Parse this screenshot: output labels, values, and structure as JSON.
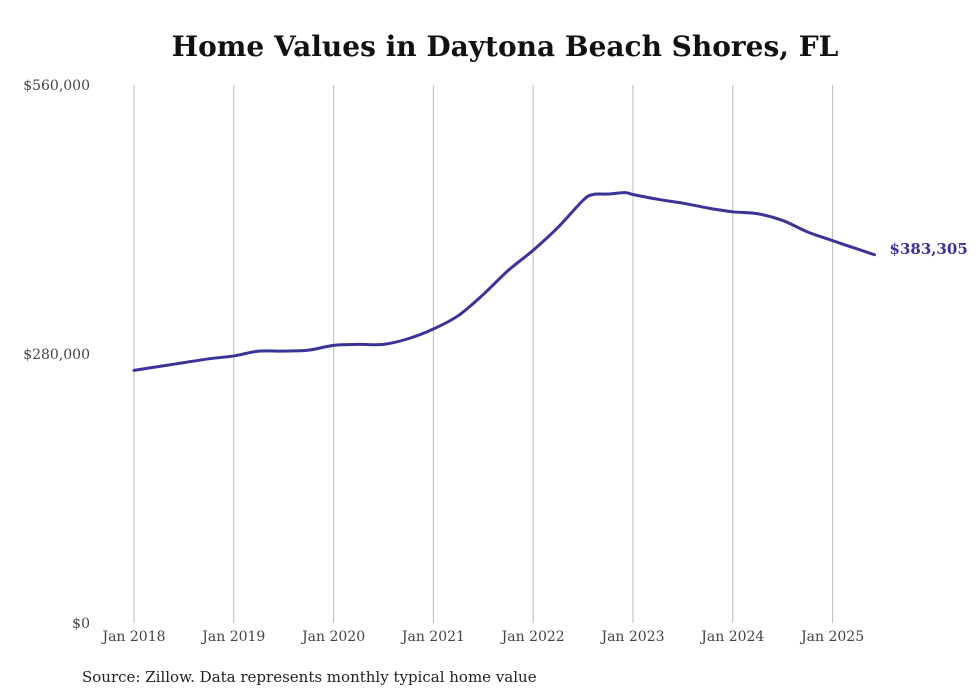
{
  "chart_data": {
    "type": "line",
    "title": "Home Values in Daytona Beach Shores, FL",
    "xlabel": "",
    "ylabel": "",
    "ylim": [
      0,
      560000
    ],
    "y_ticks": [
      0,
      280000,
      560000
    ],
    "y_tick_labels": [
      "$0",
      "$280,000",
      "$560,000"
    ],
    "x_ticks": [
      2018,
      2019,
      2020,
      2021,
      2022,
      2023,
      2024,
      2025
    ],
    "x_tick_labels": [
      "Jan 2018",
      "Jan 2019",
      "Jan 2020",
      "Jan 2021",
      "Jan 2022",
      "Jan 2023",
      "Jan 2024",
      "Jan 2025"
    ],
    "grid": "vertical",
    "series": [
      {
        "name": "Typical home value",
        "color": "#3b3398",
        "x": [
          2018.0,
          2018.25,
          2018.5,
          2018.75,
          2019.0,
          2019.25,
          2019.5,
          2019.75,
          2020.0,
          2020.25,
          2020.5,
          2020.75,
          2021.0,
          2021.25,
          2021.5,
          2021.75,
          2022.0,
          2022.25,
          2022.5,
          2022.6,
          2022.75,
          2022.92,
          2023.0,
          2023.25,
          2023.5,
          2023.75,
          2024.0,
          2024.25,
          2024.5,
          2024.75,
          2025.0,
          2025.17,
          2025.42
        ],
        "values": [
          263000,
          267000,
          271000,
          275000,
          278000,
          283000,
          283000,
          284000,
          289000,
          290000,
          290000,
          296000,
          306000,
          320000,
          342000,
          367000,
          388000,
          412000,
          440000,
          446000,
          446500,
          448000,
          446000,
          441000,
          437000,
          432000,
          428000,
          426000,
          419000,
          407000,
          398000,
          392000,
          383305
        ]
      }
    ],
    "end_label": "$383,305"
  },
  "source": "Source: Zillow. Data represents monthly typical home value"
}
